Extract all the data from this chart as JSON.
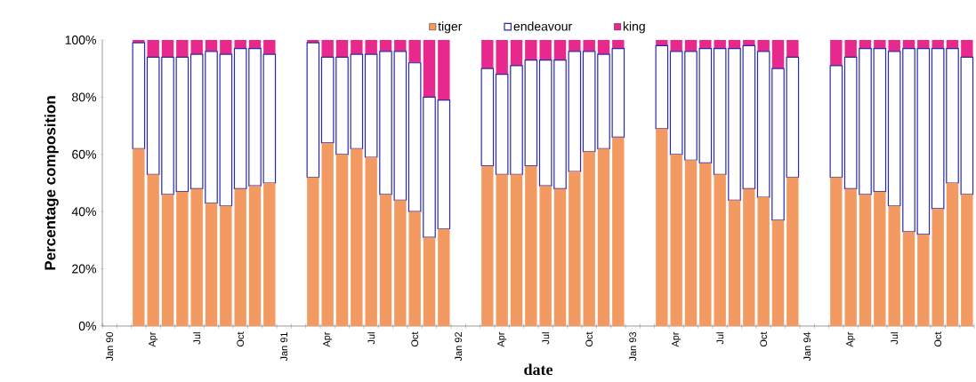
{
  "chart_data": {
    "type": "bar",
    "stacked": true,
    "xlabel": "date",
    "ylabel": "Percentage composition",
    "legend": "top",
    "categories": [
      "Jan 90",
      null,
      null,
      "Apr",
      null,
      null,
      "Jul",
      null,
      null,
      "Oct",
      null,
      null,
      "Jan 91",
      null,
      null,
      "Apr",
      null,
      null,
      "Jul",
      null,
      null,
      "Oct",
      null,
      null,
      "Jan 92",
      null,
      null,
      "Apr",
      null,
      null,
      "Jul",
      null,
      null,
      "Oct",
      null,
      null,
      "Jan 93",
      null,
      null,
      "Apr",
      null,
      null,
      "Jul",
      null,
      null,
      "Oct",
      null,
      null,
      "Jan 94",
      null,
      null,
      "Apr",
      null,
      null,
      "Jul",
      null,
      null,
      "Oct",
      null,
      null
    ],
    "ylim": [
      0,
      100
    ],
    "yticks": [
      {
        "value": 0,
        "label": "0%"
      },
      {
        "value": 20,
        "label": "20%"
      },
      {
        "value": 40,
        "label": "40%"
      },
      {
        "value": 60,
        "label": "60%"
      },
      {
        "value": 80,
        "label": "80%"
      },
      {
        "value": 100,
        "label": "100%"
      }
    ],
    "series": [
      {
        "name": "tiger",
        "color": "#f39a62",
        "values": [
          null,
          null,
          62,
          53,
          46,
          47,
          48,
          43,
          42,
          48,
          49,
          50,
          null,
          null,
          52,
          64,
          60,
          62,
          59,
          46,
          44,
          40,
          31,
          34,
          null,
          null,
          56,
          53,
          53,
          56,
          49,
          48,
          54,
          61,
          62,
          66,
          null,
          null,
          69,
          60,
          58,
          57,
          53,
          44,
          48,
          45,
          37,
          52,
          null,
          null,
          52,
          48,
          46,
          47,
          42,
          33,
          32,
          41,
          50,
          46
        ]
      },
      {
        "name": "endeavour",
        "color": "#2a2aa8",
        "values": [
          null,
          null,
          37,
          41,
          48,
          47,
          47,
          53,
          53,
          49,
          48,
          45,
          null,
          null,
          47,
          30,
          34,
          33,
          36,
          50,
          52,
          52,
          49,
          45,
          null,
          null,
          34,
          35,
          38,
          37,
          44,
          45,
          42,
          35,
          33,
          31,
          null,
          null,
          29,
          36,
          38,
          40,
          44,
          53,
          50,
          51,
          53,
          42,
          null,
          null,
          39,
          46,
          51,
          50,
          54,
          64,
          65,
          56,
          47,
          48
        ]
      },
      {
        "name": "king",
        "color": "#e8288c",
        "values": [
          null,
          null,
          1,
          6,
          6,
          6,
          5,
          4,
          5,
          3,
          3,
          5,
          null,
          null,
          1,
          6,
          6,
          5,
          5,
          4,
          4,
          8,
          20,
          21,
          null,
          null,
          10,
          12,
          9,
          7,
          7,
          7,
          4,
          4,
          5,
          3,
          null,
          null,
          2,
          4,
          4,
          3,
          3,
          3,
          2,
          4,
          10,
          6,
          null,
          null,
          9,
          6,
          3,
          3,
          4,
          3,
          3,
          3,
          3,
          6
        ]
      }
    ]
  }
}
